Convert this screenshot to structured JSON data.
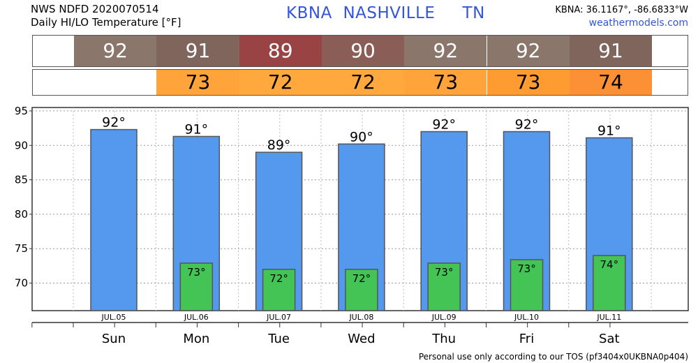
{
  "header": {
    "line1": "NWS NDFD 2020070514",
    "line2": "Daily HI/LO Temperature [°F]",
    "station_id": "KBNA",
    "station_name": "NASHVILLE",
    "state": "TN",
    "coords": "KBNA: 36.1167°, -86.6833°W",
    "site": "weathermodels.com"
  },
  "strips": {
    "hi": [
      {
        "value": "92",
        "color": "#8b766c"
      },
      {
        "value": "91",
        "color": "#7f655c"
      },
      {
        "value": "89",
        "color": "#9a4344"
      },
      {
        "value": "90",
        "color": "#8a5e57"
      },
      {
        "value": "92",
        "color": "#8b766c"
      },
      {
        "value": "92",
        "color": "#8b766c"
      },
      {
        "value": "91",
        "color": "#7f655c"
      }
    ],
    "lo": [
      {
        "value": "",
        "color": "#ffffff"
      },
      {
        "value": "73",
        "color": "#ffa43b"
      },
      {
        "value": "72",
        "color": "#ffa83e"
      },
      {
        "value": "72",
        "color": "#ffa83e"
      },
      {
        "value": "73",
        "color": "#ffa43b"
      },
      {
        "value": "73",
        "color": "#fe9b31"
      },
      {
        "value": "74",
        "color": "#fb9035"
      }
    ]
  },
  "chart_data": {
    "type": "bar",
    "categories": [
      "Sun",
      "Mon",
      "Tue",
      "Wed",
      "Thu",
      "Fri",
      "Sat"
    ],
    "dates": [
      "JUL.05",
      "JUL.06",
      "JUL.07",
      "JUL.08",
      "JUL.09",
      "JUL.10",
      "JUL.11"
    ],
    "series": [
      {
        "name": "HI",
        "values": [
          92.3,
          91.3,
          89.0,
          90.2,
          92.0,
          92.0,
          91.1
        ],
        "labels": [
          "92°",
          "91°",
          "89°",
          "90°",
          "92°",
          "92°",
          "91°"
        ],
        "color": "#5599ee"
      },
      {
        "name": "LO",
        "values": [
          null,
          72.9,
          72.0,
          72.0,
          72.9,
          73.4,
          74.0
        ],
        "labels": [
          "",
          "73°",
          "72°",
          "72°",
          "73°",
          "73°",
          "74°"
        ],
        "color": "#44c455"
      }
    ],
    "ylim": [
      66,
      95.5
    ],
    "yticks": [
      70,
      75,
      80,
      85,
      90,
      95
    ],
    "grid": true
  },
  "footer": "Personal use only according to our TOS (pf3404x0UKBNA0p404)"
}
